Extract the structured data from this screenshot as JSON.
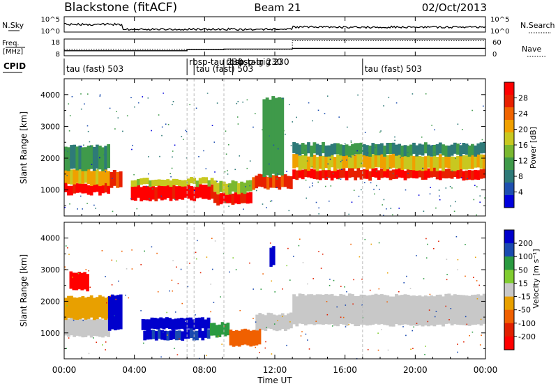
{
  "header": {
    "station": "Blackstone (fitACF)",
    "beam": "Beam 21",
    "date": "02/Oct/2013"
  },
  "noise_panel": {
    "left_label": "N.Sky",
    "right_label": "N.Search",
    "left_ticks": [
      "10^5",
      "10^0"
    ],
    "right_ticks": [
      "10^5",
      "10^0"
    ]
  },
  "freq_panel": {
    "left_label_1": "Freq.",
    "left_label_2": "[MHz]",
    "right_label": "Nave",
    "left_ticks": [
      "18",
      "8"
    ],
    "right_ticks": [
      "60",
      "0"
    ]
  },
  "cpid": {
    "label": "CPID",
    "entries": [
      {
        "text": "tau (fast) 503",
        "time": 0.0
      },
      {
        "text": "rbsp-tau 230",
        "time": 7.0
      },
      {
        "text": "tau (fast) 503",
        "time": 7.4
      },
      {
        "text": "rbsp-taig 230",
        "time": 9.1
      },
      {
        "text": "rbsp-trig 230",
        "time": 9.6
      },
      {
        "text": "tau (fast) 503",
        "time": 17.0
      }
    ]
  },
  "power_panel": {
    "ylabel": "Slant Range [km]",
    "yticks": [
      "4000",
      "3000",
      "2000",
      "1000"
    ],
    "colorbar_label": "Power [dB]",
    "colorbar_ticks": [
      "28",
      "24",
      "20",
      "16",
      "12",
      "8",
      "4"
    ],
    "colors": [
      "#0000dd",
      "#1e4fb0",
      "#2e7a78",
      "#3f9a4a",
      "#7ab830",
      "#c8c820",
      "#f0a000",
      "#f06400",
      "#e82000",
      "#ff0000"
    ]
  },
  "velocity_panel": {
    "ylabel": "Slant Range [km]",
    "yticks": [
      "4000",
      "3000",
      "2000",
      "1000"
    ],
    "colorbar_label": "Velocity [m s⁻¹]",
    "colorbar_ticks": [
      "200",
      "100",
      "50",
      "15",
      "-15",
      "-50",
      "-100",
      "-200"
    ],
    "colors": [
      "#0000cc",
      "#1a4ab0",
      "#2a9a40",
      "#80cc30",
      "#c8c8c8",
      "#e8a000",
      "#f06000",
      "#e02000",
      "#ff0000"
    ]
  },
  "x_axis": {
    "label": "Time UT",
    "ticks": [
      "00:00",
      "04:00",
      "08:00",
      "12:00",
      "16:00",
      "20:00",
      "00:00"
    ]
  },
  "chart_data": {
    "type": "heatmap",
    "title": "Blackstone (fitACF)   Beam 21   02/Oct/2013",
    "xlabel": "Time UT",
    "ylabel": "Slant Range [km]",
    "xlim_hours": [
      0,
      24
    ],
    "ylim_km": [
      180,
      4500
    ],
    "frequency_mhz": [
      {
        "t0": 0.0,
        "t1": 7.0,
        "value": 10.5
      },
      {
        "t0": 7.0,
        "t1": 9.1,
        "value": 11.2
      },
      {
        "t0": 9.1,
        "t1": 13.0,
        "value": 11.6
      },
      {
        "t0": 13.0,
        "t1": 24.0,
        "value": 12.1
      }
    ],
    "nave": [
      {
        "t0": 0.0,
        "t1": 13.0,
        "value": 22
      },
      {
        "t0": 13.0,
        "t1": 24.0,
        "value": 56
      }
    ],
    "power_bands": [
      {
        "t0": 0.0,
        "t1": 2.6,
        "r0": 880,
        "r1": 1180,
        "db": 28
      },
      {
        "t0": 0.0,
        "t1": 2.6,
        "r0": 1180,
        "r1": 1650,
        "db": 18
      },
      {
        "t0": 0.0,
        "t1": 2.6,
        "r0": 1650,
        "r1": 2400,
        "db": 9
      },
      {
        "t0": 2.6,
        "t1": 3.3,
        "r0": 1100,
        "r1": 1600,
        "db": 24
      },
      {
        "t0": 3.8,
        "t1": 8.5,
        "r0": 700,
        "r1": 1150,
        "db": 28
      },
      {
        "t0": 3.8,
        "t1": 8.5,
        "r0": 1150,
        "r1": 1350,
        "db": 16
      },
      {
        "t0": 8.5,
        "t1": 10.7,
        "r0": 550,
        "r1": 900,
        "db": 27
      },
      {
        "t0": 8.5,
        "t1": 10.7,
        "r0": 900,
        "r1": 1250,
        "db": 14
      },
      {
        "t0": 10.7,
        "t1": 13.0,
        "r0": 1050,
        "r1": 1450,
        "db": 25
      },
      {
        "t0": 11.3,
        "t1": 12.5,
        "r0": 1450,
        "r1": 3900,
        "db": 10
      },
      {
        "t0": 13.0,
        "t1": 24.0,
        "r0": 1350,
        "r1": 1650,
        "db": 27
      },
      {
        "t0": 13.0,
        "t1": 24.0,
        "r0": 1650,
        "r1": 2100,
        "db": 18
      },
      {
        "t0": 13.0,
        "t1": 24.0,
        "r0": 2100,
        "r1": 2450,
        "db": 9
      }
    ],
    "velocity_bands": [
      {
        "t0": 0.0,
        "t1": 2.6,
        "r0": 880,
        "r1": 1450,
        "v": 0
      },
      {
        "t0": 0.0,
        "t1": 2.6,
        "r0": 1450,
        "r1": 2150,
        "v": -40
      },
      {
        "t0": 0.3,
        "t1": 1.4,
        "r0": 2350,
        "r1": 2900,
        "v": -200
      },
      {
        "t0": 2.5,
        "t1": 3.3,
        "r0": 1100,
        "r1": 2200,
        "v": 200
      },
      {
        "t0": 4.4,
        "t1": 8.3,
        "r0": 1100,
        "r1": 1450,
        "v": 200
      },
      {
        "t0": 4.5,
        "t1": 8.3,
        "r0": 800,
        "r1": 1100,
        "v": 150
      },
      {
        "t0": 8.3,
        "t1": 9.4,
        "r0": 900,
        "r1": 1300,
        "v": 60
      },
      {
        "t0": 9.4,
        "t1": 11.2,
        "r0": 600,
        "r1": 1100,
        "v": -60
      },
      {
        "t0": 10.9,
        "t1": 13.0,
        "r0": 1100,
        "r1": 1600,
        "v": 0
      },
      {
        "t0": 13.0,
        "t1": 24.0,
        "r0": 1250,
        "r1": 2200,
        "v": 0
      },
      {
        "t0": 11.7,
        "t1": 12.0,
        "r0": 3100,
        "r1": 3700,
        "v": 200
      }
    ]
  }
}
